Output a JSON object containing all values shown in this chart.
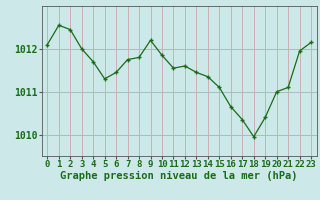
{
  "x": [
    0,
    1,
    2,
    3,
    4,
    5,
    6,
    7,
    8,
    9,
    10,
    11,
    12,
    13,
    14,
    15,
    16,
    17,
    18,
    19,
    20,
    21,
    22,
    23
  ],
  "y": [
    1012.1,
    1012.55,
    1012.45,
    1012.0,
    1011.7,
    1011.3,
    1011.45,
    1011.75,
    1011.8,
    1012.2,
    1011.85,
    1011.55,
    1011.6,
    1011.45,
    1011.35,
    1011.1,
    1010.65,
    1010.35,
    1009.95,
    1010.4,
    1011.0,
    1011.1,
    1011.95,
    1012.15
  ],
  "ylim": [
    1009.5,
    1013.0
  ],
  "yticks": [
    1010,
    1011,
    1012
  ],
  "xticks": [
    0,
    1,
    2,
    3,
    4,
    5,
    6,
    7,
    8,
    9,
    10,
    11,
    12,
    13,
    14,
    15,
    16,
    17,
    18,
    19,
    20,
    21,
    22,
    23
  ],
  "xlabel": "Graphe pression niveau de la mer (hPa)",
  "line_color": "#1a6b1a",
  "marker_color": "#1a6b1a",
  "bg_color": "#cce8e8",
  "grid_color_v": "#cc9999",
  "grid_color_h": "#aabbbb",
  "axis_color": "#555555",
  "tick_label_color": "#1a6b1a",
  "xlabel_color": "#1a6b1a",
  "xlabel_fontsize": 7.5,
  "tick_fontsize": 6.5,
  "ytick_fontsize": 7.0
}
